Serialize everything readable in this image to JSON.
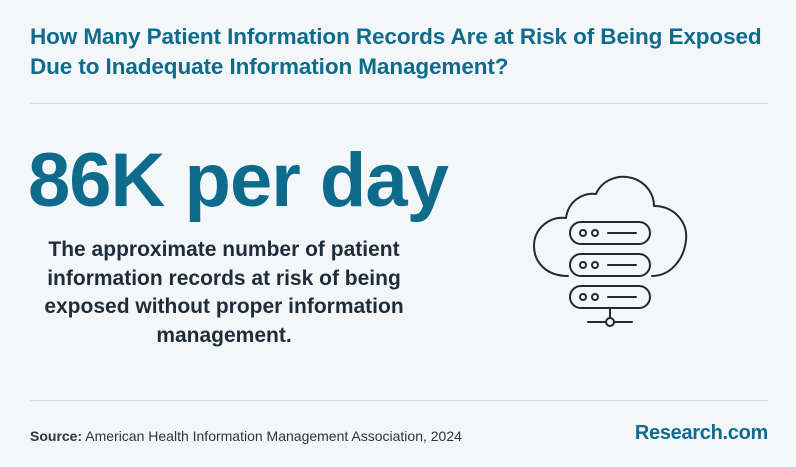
{
  "header": {
    "title_line1": "How Many Patient Information Records Are at Risk of Being Exposed",
    "title_line2": "Due to Inadequate Information Management?"
  },
  "stat": {
    "value": "86K per day",
    "description": "The approximate number of patient information records at risk of being exposed without proper information management."
  },
  "icon": {
    "name": "cloud-server-icon"
  },
  "footer": {
    "source_label": "Source:",
    "source_text": "American Health Information Management Association, 2024",
    "brand": "Research.com"
  },
  "colors": {
    "accent": "#0f6b8c",
    "background": "#f4f7f9",
    "text": "#1f2d3a",
    "divider": "#d6dde2"
  }
}
